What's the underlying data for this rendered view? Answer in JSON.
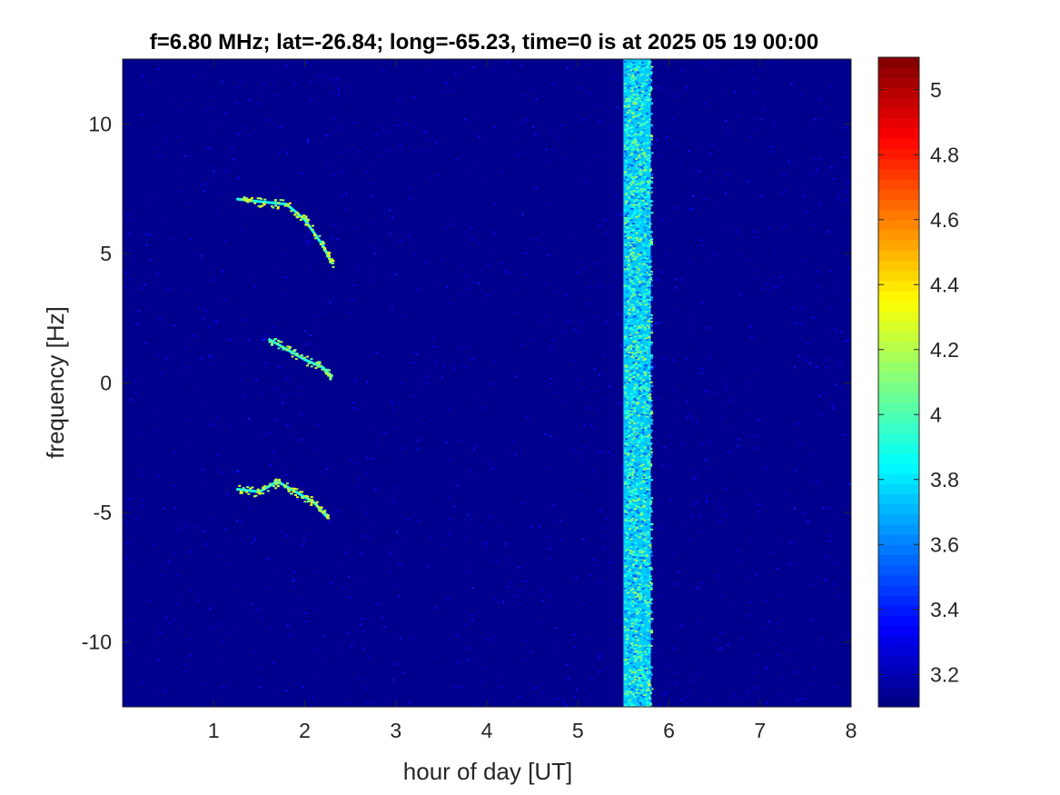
{
  "chart_data": {
    "type": "heatmap",
    "title": "f=6.80 MHz;  lat=-26.84; long=-65.23, time=0 is at 2025 05 19 00:00",
    "xlabel": "hour of day [UT]",
    "ylabel": "frequency [Hz]",
    "xlim": [
      0,
      8
    ],
    "ylim": [
      -12.5,
      12.5
    ],
    "x_ticks": [
      1,
      2,
      3,
      4,
      5,
      6,
      7,
      8
    ],
    "y_ticks": [
      -10,
      -5,
      0,
      5,
      10
    ],
    "colorbar": {
      "colormap": "jet",
      "limits": [
        3.1,
        5.1
      ],
      "ticks": [
        3.2,
        3.4,
        3.6,
        3.8,
        4,
        4.2,
        4.4,
        4.6,
        4.8,
        5
      ]
    },
    "features": [
      {
        "kind": "broadband-band",
        "x_start": 5.5,
        "x_end": 5.8,
        "level": 4.0
      },
      {
        "kind": "doppler-trace",
        "points": [
          [
            1.25,
            7.1
          ],
          [
            1.5,
            7.0
          ],
          [
            1.8,
            6.9
          ],
          [
            2.0,
            6.3
          ],
          [
            2.2,
            5.3
          ],
          [
            2.3,
            4.6
          ]
        ],
        "level": 4.3
      },
      {
        "kind": "doppler-trace",
        "points": [
          [
            1.6,
            1.7
          ],
          [
            1.8,
            1.3
          ],
          [
            2.0,
            0.9
          ],
          [
            2.2,
            0.6
          ],
          [
            2.3,
            0.2
          ]
        ],
        "level": 4.2
      },
      {
        "kind": "doppler-trace",
        "points": [
          [
            1.25,
            -4.1
          ],
          [
            1.5,
            -4.2
          ],
          [
            1.7,
            -3.8
          ],
          [
            1.9,
            -4.2
          ],
          [
            2.1,
            -4.6
          ],
          [
            2.25,
            -5.2
          ]
        ],
        "level": 4.3
      }
    ],
    "colors": {
      "background": "#00008f",
      "axis": "#262626"
    }
  }
}
